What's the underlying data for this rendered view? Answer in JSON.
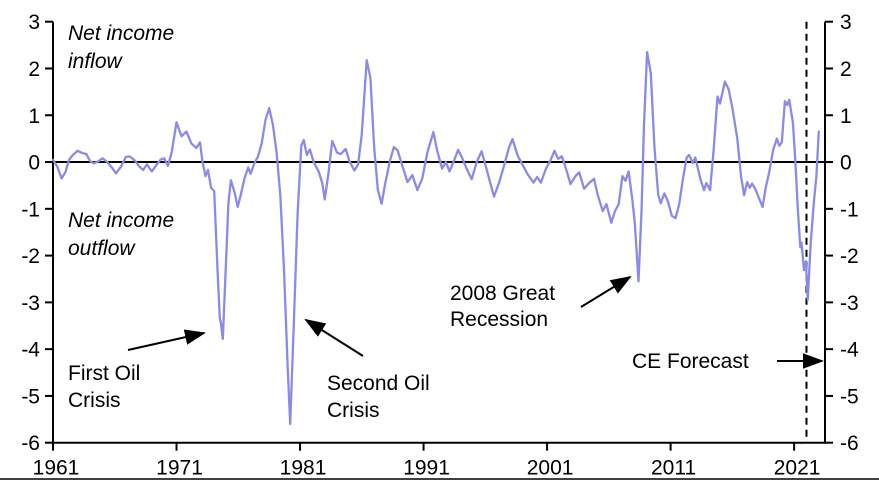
{
  "chart_data": {
    "type": "line",
    "title": "",
    "xlabel": "",
    "ylabel": "",
    "xlim": [
      1961,
      2023.5
    ],
    "ylim": [
      -6,
      3
    ],
    "grid": false,
    "legend": "none",
    "x_ticks": [
      1961,
      1971,
      1981,
      1991,
      2001,
      2011,
      2021
    ],
    "y_ticks_left": [
      3,
      2,
      1,
      0,
      -1,
      -2,
      -3,
      -4,
      -5,
      -6
    ],
    "y_ticks_right": [
      3,
      2,
      1,
      0,
      -1,
      -2,
      -3,
      -4,
      -5,
      -6
    ],
    "zero_line_y": 0,
    "forecast_line_x": 2022,
    "series": [
      {
        "name": "net-income-balance",
        "color": "#8a8ae8",
        "points": [
          [
            1961.0,
            0.05
          ],
          [
            1961.35,
            -0.1
          ],
          [
            1961.7,
            -0.35
          ],
          [
            1962.0,
            -0.22
          ],
          [
            1962.3,
            0.05
          ],
          [
            1962.6,
            0.15
          ],
          [
            1963.0,
            0.24
          ],
          [
            1963.3,
            0.2
          ],
          [
            1963.7,
            0.17
          ],
          [
            1964.0,
            0.02
          ],
          [
            1964.3,
            -0.03
          ],
          [
            1964.7,
            0.02
          ],
          [
            1965.0,
            0.08
          ],
          [
            1965.4,
            0.0
          ],
          [
            1965.8,
            -0.13
          ],
          [
            1966.1,
            -0.24
          ],
          [
            1966.5,
            -0.1
          ],
          [
            1966.9,
            0.11
          ],
          [
            1967.2,
            0.12
          ],
          [
            1967.6,
            0.04
          ],
          [
            1968.0,
            -0.1
          ],
          [
            1968.3,
            -0.17
          ],
          [
            1968.6,
            -0.05
          ],
          [
            1969.0,
            -0.2
          ],
          [
            1969.4,
            -0.05
          ],
          [
            1969.7,
            0.05
          ],
          [
            1970.0,
            0.08
          ],
          [
            1970.3,
            -0.08
          ],
          [
            1970.6,
            0.2
          ],
          [
            1971.0,
            0.85
          ],
          [
            1971.4,
            0.55
          ],
          [
            1971.8,
            0.65
          ],
          [
            1972.2,
            0.4
          ],
          [
            1972.6,
            0.3
          ],
          [
            1972.9,
            0.42
          ],
          [
            1973.1,
            0.0
          ],
          [
            1973.35,
            -0.3
          ],
          [
            1973.55,
            -0.17
          ],
          [
            1973.8,
            -0.55
          ],
          [
            1974.05,
            -0.62
          ],
          [
            1974.3,
            -2.2
          ],
          [
            1974.5,
            -3.35
          ],
          [
            1974.6,
            -3.45
          ],
          [
            1974.75,
            -3.78
          ],
          [
            1975.0,
            -2.2
          ],
          [
            1975.2,
            -0.88
          ],
          [
            1975.4,
            -0.39
          ],
          [
            1975.7,
            -0.65
          ],
          [
            1975.95,
            -0.96
          ],
          [
            1976.2,
            -0.7
          ],
          [
            1976.5,
            -0.35
          ],
          [
            1976.8,
            -0.12
          ],
          [
            1977.0,
            -0.25
          ],
          [
            1977.3,
            -0.03
          ],
          [
            1977.6,
            0.12
          ],
          [
            1977.9,
            0.4
          ],
          [
            1978.2,
            0.9
          ],
          [
            1978.5,
            1.15
          ],
          [
            1978.8,
            0.8
          ],
          [
            1979.1,
            0.2
          ],
          [
            1979.4,
            -0.7
          ],
          [
            1979.7,
            -2.3
          ],
          [
            1980.0,
            -4.4
          ],
          [
            1980.2,
            -5.6
          ],
          [
            1980.5,
            -3.4
          ],
          [
            1980.8,
            -1.1
          ],
          [
            1981.1,
            0.35
          ],
          [
            1981.3,
            0.47
          ],
          [
            1981.55,
            0.15
          ],
          [
            1981.8,
            0.27
          ],
          [
            1982.1,
            0.0
          ],
          [
            1982.5,
            -0.2
          ],
          [
            1982.8,
            -0.45
          ],
          [
            1983.0,
            -0.8
          ],
          [
            1983.3,
            -0.25
          ],
          [
            1983.6,
            0.45
          ],
          [
            1984.0,
            0.2
          ],
          [
            1984.3,
            0.17
          ],
          [
            1984.7,
            0.28
          ],
          [
            1985.0,
            0.02
          ],
          [
            1985.4,
            -0.18
          ],
          [
            1985.7,
            -0.05
          ],
          [
            1986.0,
            0.6
          ],
          [
            1986.4,
            2.18
          ],
          [
            1986.7,
            1.8
          ],
          [
            1987.0,
            0.3
          ],
          [
            1987.3,
            -0.6
          ],
          [
            1987.6,
            -0.89
          ],
          [
            1987.9,
            -0.45
          ],
          [
            1988.3,
            0.05
          ],
          [
            1988.6,
            0.32
          ],
          [
            1988.9,
            0.25
          ],
          [
            1989.3,
            -0.1
          ],
          [
            1989.7,
            -0.43
          ],
          [
            1990.1,
            -0.28
          ],
          [
            1990.5,
            -0.6
          ],
          [
            1990.9,
            -0.35
          ],
          [
            1991.3,
            0.2
          ],
          [
            1991.8,
            0.64
          ],
          [
            1992.1,
            0.25
          ],
          [
            1992.5,
            -0.14
          ],
          [
            1992.8,
            0.0
          ],
          [
            1993.1,
            -0.2
          ],
          [
            1993.5,
            0.05
          ],
          [
            1993.8,
            0.26
          ],
          [
            1994.1,
            0.1
          ],
          [
            1994.5,
            -0.15
          ],
          [
            1994.9,
            -0.37
          ],
          [
            1995.3,
            0.0
          ],
          [
            1995.7,
            0.23
          ],
          [
            1996.0,
            -0.05
          ],
          [
            1996.4,
            -0.45
          ],
          [
            1996.7,
            -0.74
          ],
          [
            1997.1,
            -0.45
          ],
          [
            1997.5,
            -0.1
          ],
          [
            1997.9,
            0.3
          ],
          [
            1998.2,
            0.49
          ],
          [
            1998.6,
            0.15
          ],
          [
            1999.0,
            -0.05
          ],
          [
            1999.4,
            -0.25
          ],
          [
            1999.9,
            -0.44
          ],
          [
            2000.2,
            -0.32
          ],
          [
            2000.5,
            -0.44
          ],
          [
            2000.9,
            -0.15
          ],
          [
            2001.3,
            0.05
          ],
          [
            2001.6,
            0.24
          ],
          [
            2001.9,
            0.07
          ],
          [
            2002.2,
            0.12
          ],
          [
            2002.6,
            -0.2
          ],
          [
            2002.9,
            -0.47
          ],
          [
            2003.3,
            -0.3
          ],
          [
            2003.6,
            -0.22
          ],
          [
            2004.0,
            -0.57
          ],
          [
            2004.4,
            -0.45
          ],
          [
            2004.8,
            -0.36
          ],
          [
            2005.1,
            -0.7
          ],
          [
            2005.5,
            -1.05
          ],
          [
            2005.8,
            -0.9
          ],
          [
            2006.2,
            -1.3
          ],
          [
            2006.5,
            -1.05
          ],
          [
            2006.8,
            -0.9
          ],
          [
            2007.1,
            -0.3
          ],
          [
            2007.35,
            -0.4
          ],
          [
            2007.6,
            -0.2
          ],
          [
            2007.9,
            -0.8
          ],
          [
            2008.1,
            -1.3
          ],
          [
            2008.4,
            -2.55
          ],
          [
            2008.65,
            -1.0
          ],
          [
            2008.85,
            0.8
          ],
          [
            2009.1,
            2.35
          ],
          [
            2009.4,
            1.9
          ],
          [
            2009.7,
            0.3
          ],
          [
            2010.0,
            -0.7
          ],
          [
            2010.2,
            -0.88
          ],
          [
            2010.5,
            -0.67
          ],
          [
            2010.8,
            -0.85
          ],
          [
            2011.1,
            -1.15
          ],
          [
            2011.4,
            -1.2
          ],
          [
            2011.7,
            -0.9
          ],
          [
            2012.0,
            -0.35
          ],
          [
            2012.3,
            0.1
          ],
          [
            2012.5,
            0.15
          ],
          [
            2012.8,
            -0.02
          ],
          [
            2013.0,
            0.1
          ],
          [
            2013.4,
            -0.35
          ],
          [
            2013.7,
            -0.6
          ],
          [
            2013.9,
            -0.45
          ],
          [
            2014.2,
            -0.6
          ],
          [
            2014.5,
            0.3
          ],
          [
            2014.8,
            1.4
          ],
          [
            2015.0,
            1.25
          ],
          [
            2015.4,
            1.72
          ],
          [
            2015.7,
            1.55
          ],
          [
            2016.0,
            1.15
          ],
          [
            2016.4,
            0.5
          ],
          [
            2016.7,
            -0.3
          ],
          [
            2016.95,
            -0.71
          ],
          [
            2017.2,
            -0.43
          ],
          [
            2017.4,
            -0.55
          ],
          [
            2017.6,
            -0.46
          ],
          [
            2017.9,
            -0.6
          ],
          [
            2018.2,
            -0.8
          ],
          [
            2018.45,
            -0.96
          ],
          [
            2018.7,
            -0.55
          ],
          [
            2019.0,
            -0.2
          ],
          [
            2019.3,
            0.25
          ],
          [
            2019.6,
            0.5
          ],
          [
            2019.8,
            0.35
          ],
          [
            2020.0,
            0.42
          ],
          [
            2020.25,
            1.3
          ],
          [
            2020.45,
            1.22
          ],
          [
            2020.6,
            1.33
          ],
          [
            2020.9,
            0.85
          ],
          [
            2021.1,
            0.0
          ],
          [
            2021.3,
            -1.0
          ],
          [
            2021.5,
            -1.82
          ],
          [
            2021.6,
            -1.72
          ],
          [
            2021.8,
            -2.31
          ],
          [
            2021.95,
            -2.12
          ],
          [
            2022.1,
            -2.95
          ],
          [
            2022.35,
            -1.7
          ],
          [
            2022.6,
            -0.85
          ],
          [
            2022.8,
            -0.3
          ],
          [
            2023.0,
            0.65
          ]
        ]
      }
    ]
  },
  "annotations": {
    "inflow": {
      "line1": "Net income",
      "line2": "inflow"
    },
    "outflow": {
      "line1": "Net income",
      "line2": "outflow"
    },
    "first_oil": {
      "line1": "First Oil",
      "line2": "Crisis"
    },
    "second_oil": {
      "line1": "Second Oil",
      "line2": "Crisis"
    },
    "recession": {
      "line1": "2008 Great",
      "line2": "Recession"
    },
    "forecast": {
      "label": "CE Forecast"
    }
  },
  "colors": {
    "line": "#8a8ae8",
    "axis": "#000000",
    "background": "#ffffff"
  }
}
